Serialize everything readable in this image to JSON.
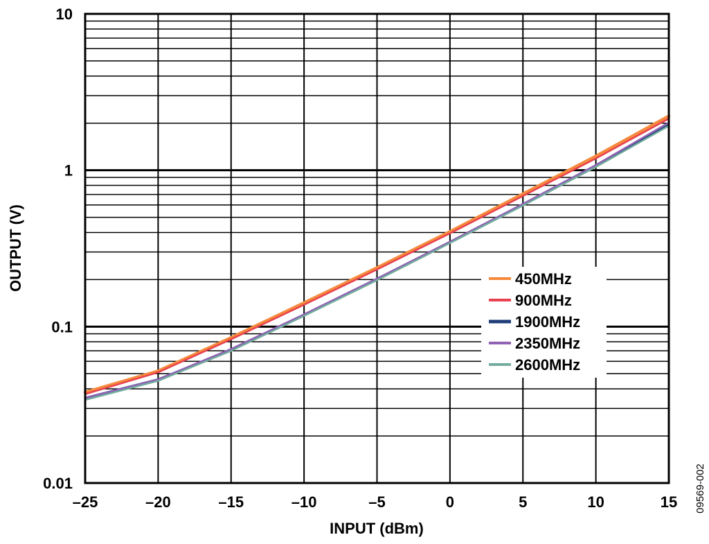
{
  "chart_data": {
    "type": "line",
    "xlabel": "INPUT (dBm)",
    "ylabel": "OUTPUT (V)",
    "xlim": [
      -25,
      15
    ],
    "ylim": [
      0.01,
      10
    ],
    "yscale": "log",
    "grid": true,
    "legend_position": "right-middle",
    "x_ticks": [
      -25,
      -20,
      -15,
      -10,
      -5,
      0,
      5,
      10,
      15
    ],
    "x_tick_labels": [
      "–25",
      "–20",
      "–15",
      "–10",
      "–5",
      "0",
      "5",
      "10",
      "15"
    ],
    "y_ticks": [
      0.01,
      0.1,
      1,
      10
    ],
    "y_tick_labels": [
      "0.01",
      "0.1",
      "1",
      "10"
    ],
    "x": [
      -25,
      -20,
      -15,
      -10,
      -5,
      0,
      5,
      10,
      15
    ],
    "series": [
      {
        "name": "450MHz",
        "color": "#f58a3c",
        "values": [
          0.038,
          0.052,
          0.085,
          0.142,
          0.238,
          0.405,
          0.705,
          1.23,
          2.22
        ]
      },
      {
        "name": "900MHz",
        "color": "#e8414f",
        "values": [
          0.037,
          0.051,
          0.083,
          0.138,
          0.232,
          0.395,
          0.685,
          1.19,
          2.14
        ]
      },
      {
        "name": "1900MHz",
        "color": "#1d3c78",
        "values": [
          0.035,
          0.046,
          0.071,
          0.118,
          0.2,
          0.345,
          0.6,
          1.06,
          1.95
        ]
      },
      {
        "name": "2350MHz",
        "color": "#8f62b4",
        "values": [
          0.035,
          0.046,
          0.072,
          0.12,
          0.203,
          0.35,
          0.61,
          1.08,
          2.02
        ]
      },
      {
        "name": "2600MHz",
        "color": "#73ad9e",
        "values": [
          0.034,
          0.045,
          0.07,
          0.117,
          0.198,
          0.342,
          0.595,
          1.05,
          1.92
        ]
      }
    ]
  },
  "figure_id": "09569-002"
}
